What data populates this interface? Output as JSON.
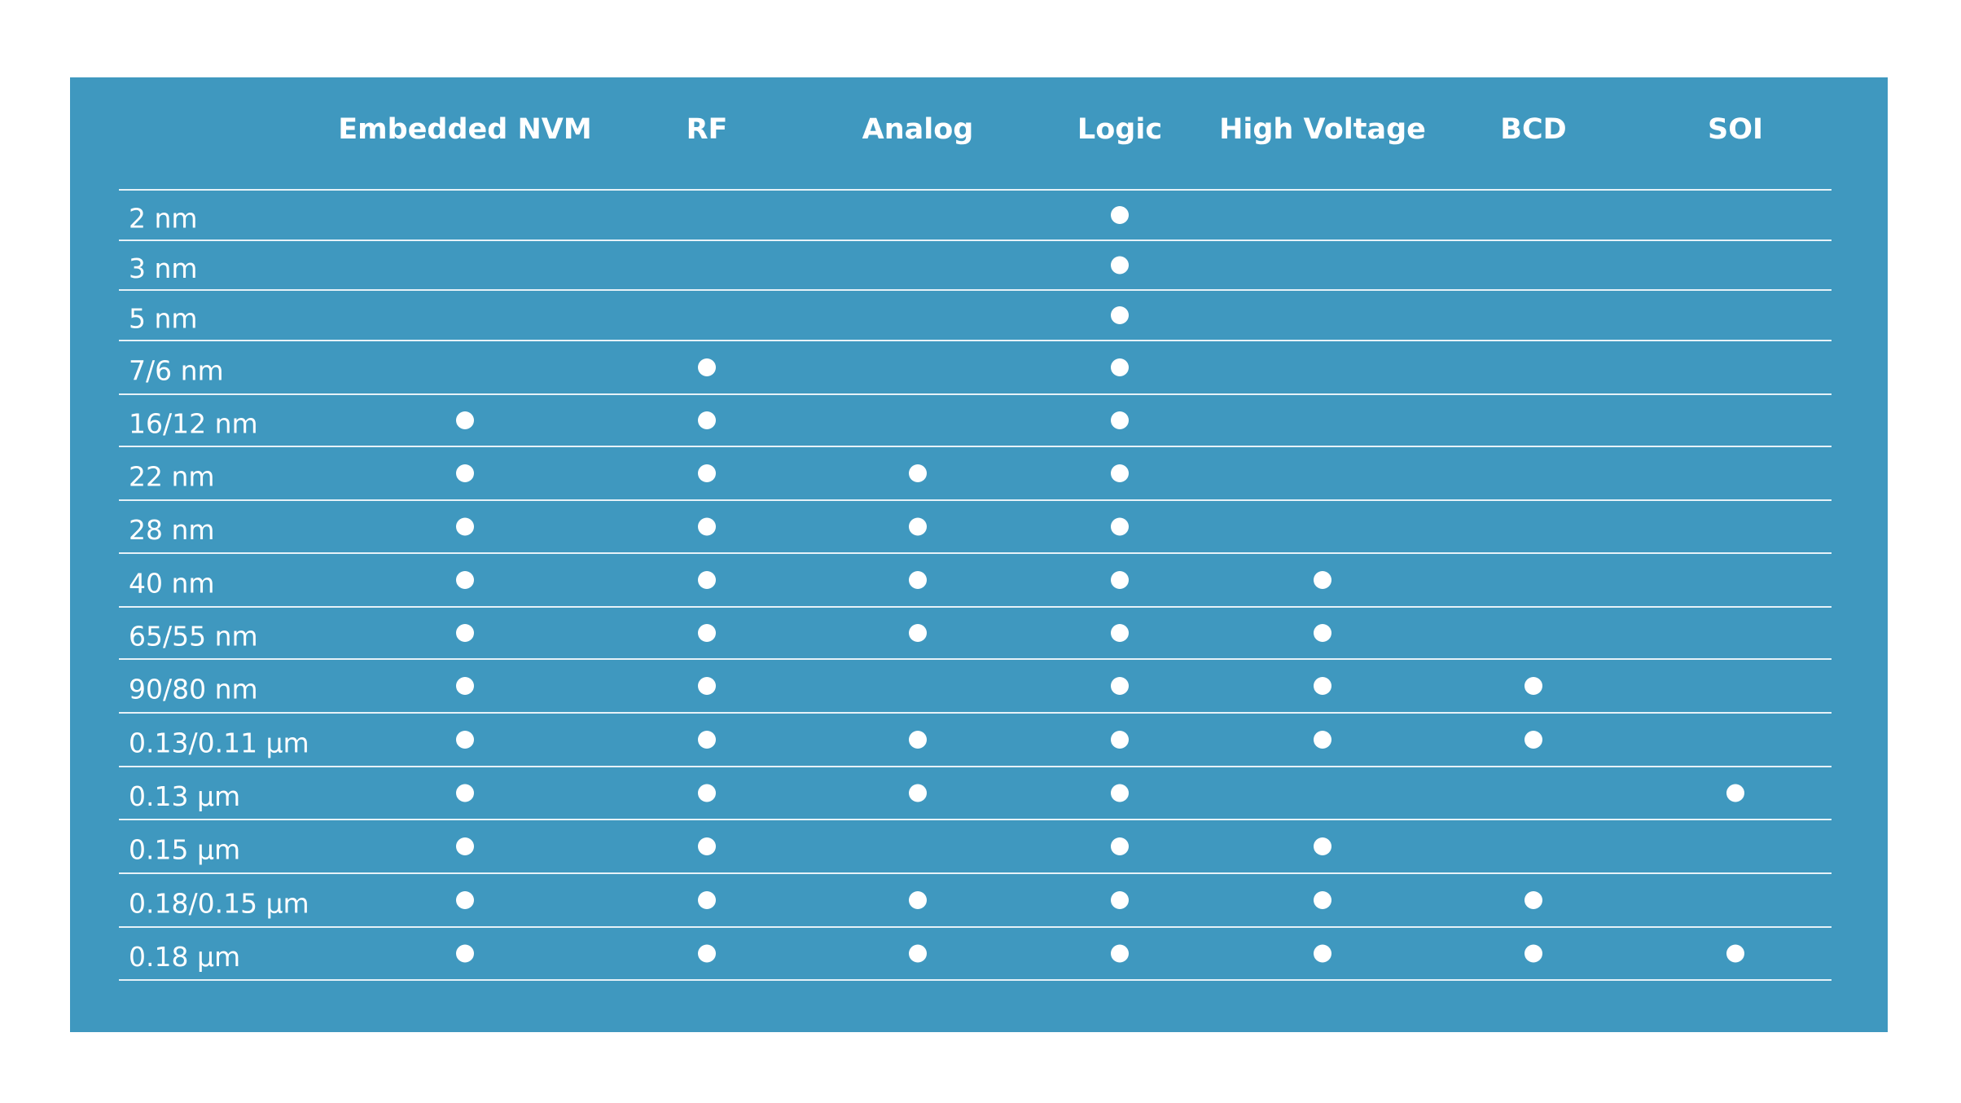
{
  "table": {
    "columns": [
      "Embedded NVM",
      "RF",
      "Analog",
      "Logic",
      "High Voltage",
      "BCD",
      "SOI"
    ],
    "rows": [
      {
        "label": "2 nm",
        "cells": [
          false,
          false,
          false,
          true,
          false,
          false,
          false
        ]
      },
      {
        "label": "3 nm",
        "cells": [
          false,
          false,
          false,
          true,
          false,
          false,
          false
        ]
      },
      {
        "label": "5 nm",
        "cells": [
          false,
          false,
          false,
          true,
          false,
          false,
          false
        ]
      },
      {
        "label": "7/6 nm",
        "cells": [
          false,
          true,
          false,
          true,
          false,
          false,
          false
        ]
      },
      {
        "label": "16/12 nm",
        "cells": [
          true,
          true,
          false,
          true,
          false,
          false,
          false
        ]
      },
      {
        "label": "22 nm",
        "cells": [
          true,
          true,
          true,
          true,
          false,
          false,
          false
        ]
      },
      {
        "label": "28 nm",
        "cells": [
          true,
          true,
          true,
          true,
          false,
          false,
          false
        ]
      },
      {
        "label": "40 nm",
        "cells": [
          true,
          true,
          true,
          true,
          true,
          false,
          false
        ]
      },
      {
        "label": "65/55 nm",
        "cells": [
          true,
          true,
          true,
          true,
          true,
          false,
          false
        ]
      },
      {
        "label": "90/80 nm",
        "cells": [
          true,
          true,
          false,
          true,
          true,
          true,
          false
        ]
      },
      {
        "label": "0.13/0.11 µm",
        "cells": [
          true,
          true,
          true,
          true,
          true,
          true,
          false
        ]
      },
      {
        "label": "0.13 µm",
        "cells": [
          true,
          true,
          true,
          true,
          false,
          false,
          true
        ]
      },
      {
        "label": "0.15 µm",
        "cells": [
          true,
          true,
          false,
          true,
          true,
          false,
          false
        ]
      },
      {
        "label": "0.18/0.15 µm",
        "cells": [
          true,
          true,
          true,
          true,
          true,
          true,
          false
        ]
      },
      {
        "label": "0.18 µm",
        "cells": [
          true,
          true,
          true,
          true,
          true,
          true,
          true
        ]
      }
    ]
  }
}
